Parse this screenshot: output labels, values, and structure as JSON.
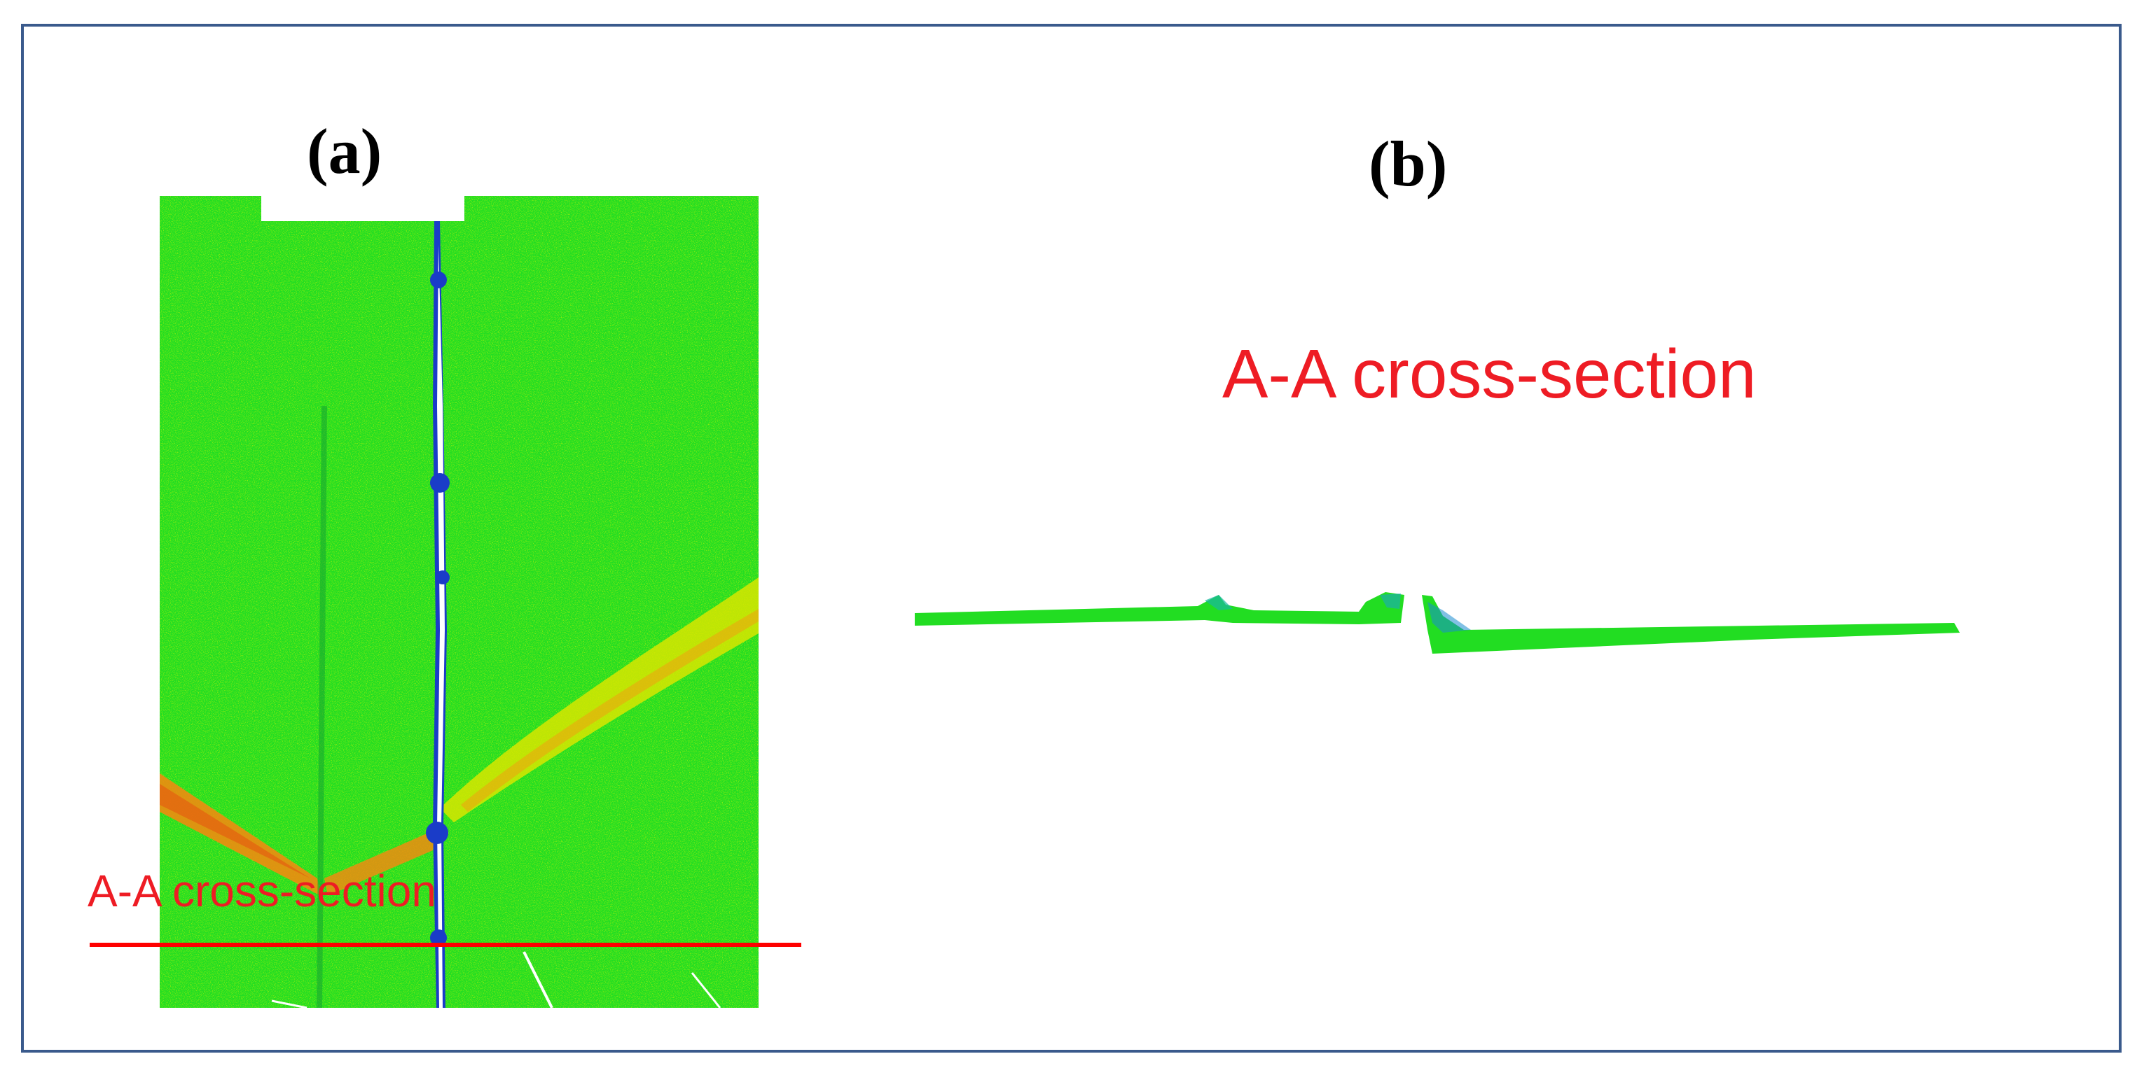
{
  "figure": {
    "panel_a_label": "(a)",
    "panel_b_label": "(b)",
    "panel_a_section_label": "A-A cross-section",
    "panel_b_title": "A-A cross-section",
    "colors": {
      "frame": "#3a5a8c",
      "annotation_red": "#ee1c24",
      "surface_green": "#22dd22",
      "band_yellow": "#d8e600",
      "band_orange": "#f08c10",
      "crack_blue": "#1a3cc8"
    },
    "icons": [
      "scan-image-a",
      "cross-section-profile-b"
    ]
  }
}
